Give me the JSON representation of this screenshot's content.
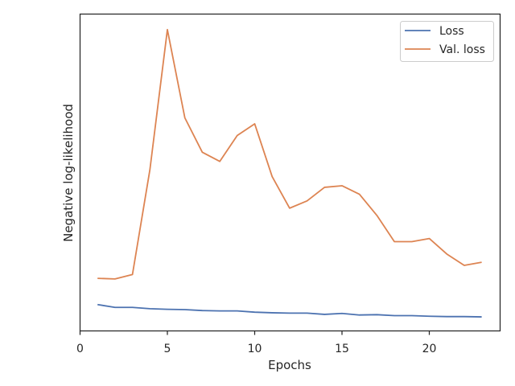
{
  "chart_data": {
    "type": "line",
    "xlabel": "Epochs",
    "ylabel": "Negative log-likelihood",
    "xlim": [
      0,
      24
    ],
    "ylim": [
      0,
      1.0
    ],
    "xticks": [
      0,
      5,
      10,
      15,
      20
    ],
    "yticks": [],
    "grid": false,
    "legend": "top-right",
    "x": [
      1,
      2,
      3,
      4,
      5,
      6,
      7,
      8,
      9,
      10,
      11,
      12,
      13,
      14,
      15,
      16,
      17,
      18,
      19,
      20,
      21,
      22,
      23
    ],
    "series": [
      {
        "name": "Loss",
        "color": "#4c72b0",
        "values": [
          0.077,
          0.068,
          0.068,
          0.064,
          0.062,
          0.061,
          0.058,
          0.057,
          0.057,
          0.053,
          0.051,
          0.05,
          0.05,
          0.046,
          0.049,
          0.044,
          0.045,
          0.042,
          0.042,
          0.04,
          0.039,
          0.039,
          0.038
        ]
      },
      {
        "name": "Val. loss",
        "color": "#dd8452",
        "values": [
          0.16,
          0.158,
          0.172,
          0.504,
          0.947,
          0.668,
          0.559,
          0.53,
          0.612,
          0.649,
          0.482,
          0.382,
          0.405,
          0.448,
          0.453,
          0.426,
          0.359,
          0.276,
          0.276,
          0.286,
          0.237,
          0.201,
          0.211
        ]
      }
    ]
  }
}
